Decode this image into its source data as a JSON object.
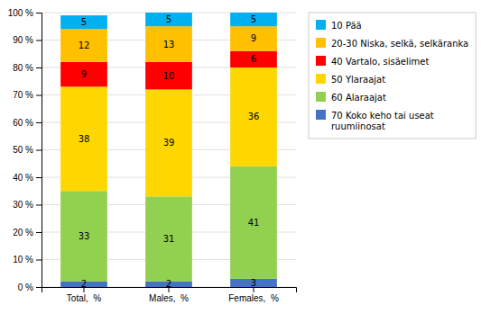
{
  "chart_data": {
    "type": "bar",
    "stacked": true,
    "categories": [
      "Total,  %",
      "Males,  %",
      "Females,  %"
    ],
    "series": [
      {
        "name": "70 Koko keho tai useat\n ruumiinosat",
        "values": [
          2,
          2,
          3
        ],
        "color": "#4472C4"
      },
      {
        "name": "60 Alaraajat",
        "values": [
          33,
          31,
          41
        ],
        "color": "#92D050"
      },
      {
        "name": "50 Ylaraajat",
        "values": [
          38,
          39,
          36
        ],
        "color": "#FFD700"
      },
      {
        "name": "40 Vartalo, sisäelimet",
        "values": [
          9,
          10,
          6
        ],
        "color": "#FF0000"
      },
      {
        "name": "20-30 Niska, selkä, selkäranka",
        "values": [
          12,
          13,
          9
        ],
        "color": "#FFC000"
      },
      {
        "name": "10 Pää",
        "values": [
          5,
          5,
          5
        ],
        "color": "#00B0F0"
      }
    ],
    "ylim": [
      0,
      100
    ],
    "yticks": [
      {
        "value": 0,
        "label": "0 %"
      },
      {
        "value": 10,
        "label": "10 %"
      },
      {
        "value": 20,
        "label": "20 %"
      },
      {
        "value": 30,
        "label": "30 %"
      },
      {
        "value": 40,
        "label": "40 %"
      },
      {
        "value": 50,
        "label": "50 %"
      },
      {
        "value": 60,
        "label": "60 %"
      },
      {
        "value": 70,
        "label": "70 %"
      },
      {
        "value": 80,
        "label": "80 %"
      },
      {
        "value": 90,
        "label": "90 %"
      },
      {
        "value": 100,
        "label": "100 %"
      }
    ],
    "grid": true,
    "data_labels": true,
    "legend": "right"
  }
}
